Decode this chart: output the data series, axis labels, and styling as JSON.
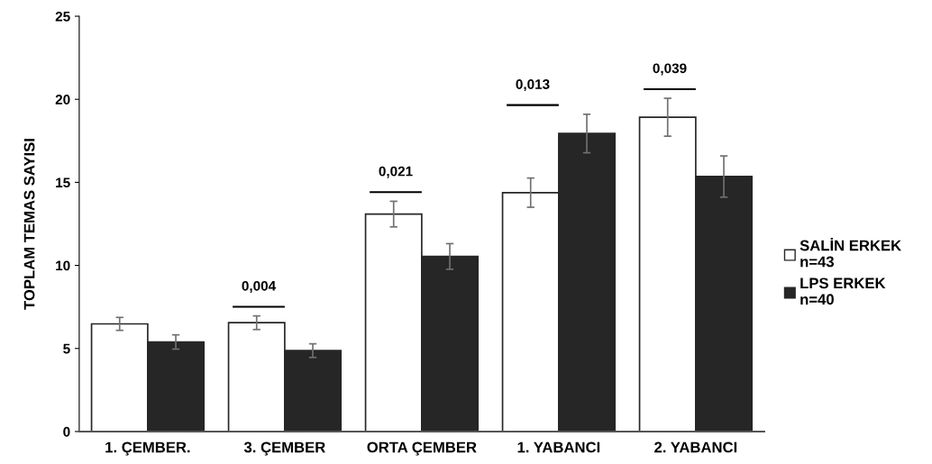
{
  "chart_data": {
    "type": "bar",
    "ylabel": "TOPLAM TEMAS SAYISI",
    "categories": [
      "1. ÇEMBER.",
      "3. ÇEMBER",
      "ORTA ÇEMBER",
      "1. YABANCI",
      "2. YABANCI"
    ],
    "series": [
      {
        "name": "SALİN ERKEK\nn=43",
        "color": "#ffffff",
        "values": [
          6.48,
          6.55,
          13.09,
          14.38,
          18.92
        ],
        "errors": [
          0.39,
          0.41,
          0.77,
          0.88,
          1.14
        ]
      },
      {
        "name": "LPS ERKEK\nn=40",
        "color": "#262626",
        "values": [
          5.39,
          4.87,
          10.54,
          17.94,
          15.35
        ],
        "errors": [
          0.43,
          0.41,
          0.77,
          1.16,
          1.24
        ]
      }
    ],
    "annotations": [
      "0,004",
      "0,021",
      "0,013",
      "0,039"
    ],
    "ylim": [
      0,
      25
    ],
    "yticks": [
      0,
      5,
      10,
      15,
      20,
      25
    ],
    "grid": false,
    "legend": "right"
  }
}
